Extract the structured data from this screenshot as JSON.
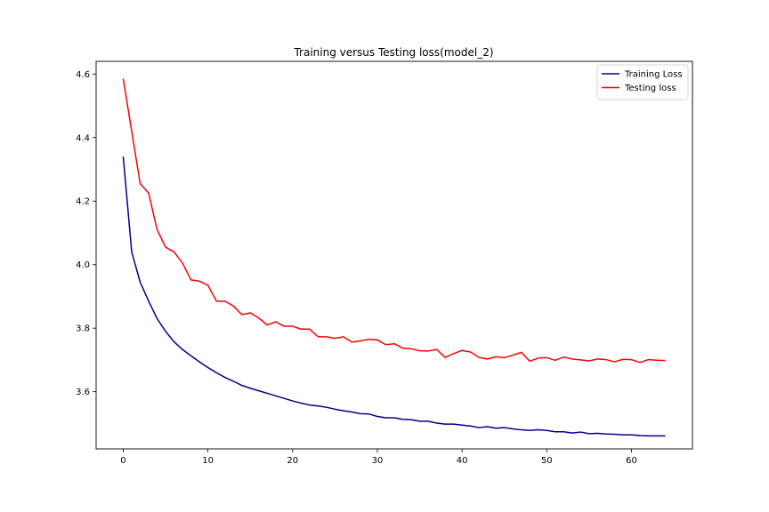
{
  "chart_data": {
    "type": "line",
    "title": "Training versus Testing loss(model_2)",
    "xlabel": "",
    "ylabel": "",
    "xlim": [
      -3.2,
      67.2
    ],
    "ylim": [
      3.42,
      4.64
    ],
    "x_ticks": [
      0,
      10,
      20,
      30,
      40,
      50,
      60
    ],
    "y_ticks": [
      3.6,
      3.8,
      4.0,
      4.2,
      4.4,
      4.6
    ],
    "x_tick_labels": [
      "0",
      "10",
      "20",
      "30",
      "40",
      "50",
      "60"
    ],
    "y_tick_labels": [
      "3.6",
      "3.8",
      "4.0",
      "4.2",
      "4.4",
      "4.6"
    ],
    "grid": false,
    "legend_position": "top-right",
    "x": [
      0,
      1,
      2,
      3,
      4,
      5,
      6,
      7,
      8,
      9,
      10,
      11,
      12,
      13,
      14,
      15,
      16,
      17,
      18,
      19,
      20,
      21,
      22,
      23,
      24,
      25,
      26,
      27,
      28,
      29,
      30,
      31,
      32,
      33,
      34,
      35,
      36,
      37,
      38,
      39,
      40,
      41,
      42,
      43,
      44,
      45,
      46,
      47,
      48,
      49,
      50,
      51,
      52,
      53,
      54,
      55,
      56,
      57,
      58,
      59,
      60,
      61,
      62,
      63,
      64
    ],
    "series": [
      {
        "name": "Training Loss",
        "color": "#00008b",
        "values": [
          4.34,
          4.04,
          3.945,
          3.885,
          3.83,
          3.79,
          3.757,
          3.733,
          3.713,
          3.694,
          3.676,
          3.66,
          3.645,
          3.633,
          3.62,
          3.611,
          3.603,
          3.595,
          3.587,
          3.579,
          3.571,
          3.564,
          3.558,
          3.555,
          3.551,
          3.545,
          3.54,
          3.536,
          3.531,
          3.53,
          3.522,
          3.518,
          3.518,
          3.513,
          3.512,
          3.507,
          3.507,
          3.501,
          3.498,
          3.498,
          3.495,
          3.492,
          3.487,
          3.49,
          3.485,
          3.487,
          3.483,
          3.48,
          3.478,
          3.48,
          3.478,
          3.474,
          3.474,
          3.47,
          3.473,
          3.468,
          3.469,
          3.467,
          3.466,
          3.464,
          3.464,
          3.462,
          3.461,
          3.461,
          3.461
        ]
      },
      {
        "name": "Testing loss",
        "color": "#ff0000",
        "values": [
          4.585,
          4.42,
          4.255,
          4.225,
          4.11,
          4.055,
          4.04,
          4.005,
          3.952,
          3.948,
          3.935,
          3.885,
          3.885,
          3.87,
          3.843,
          3.848,
          3.832,
          3.81,
          3.82,
          3.806,
          3.806,
          3.797,
          3.797,
          3.773,
          3.773,
          3.768,
          3.773,
          3.756,
          3.76,
          3.765,
          3.763,
          3.748,
          3.751,
          3.737,
          3.735,
          3.729,
          3.728,
          3.733,
          3.708,
          3.72,
          3.73,
          3.725,
          3.708,
          3.703,
          3.71,
          3.707,
          3.715,
          3.724,
          3.696,
          3.706,
          3.707,
          3.699,
          3.709,
          3.703,
          3.7,
          3.697,
          3.703,
          3.701,
          3.694,
          3.702,
          3.701,
          3.692,
          3.701,
          3.699,
          3.698
        ]
      }
    ]
  }
}
